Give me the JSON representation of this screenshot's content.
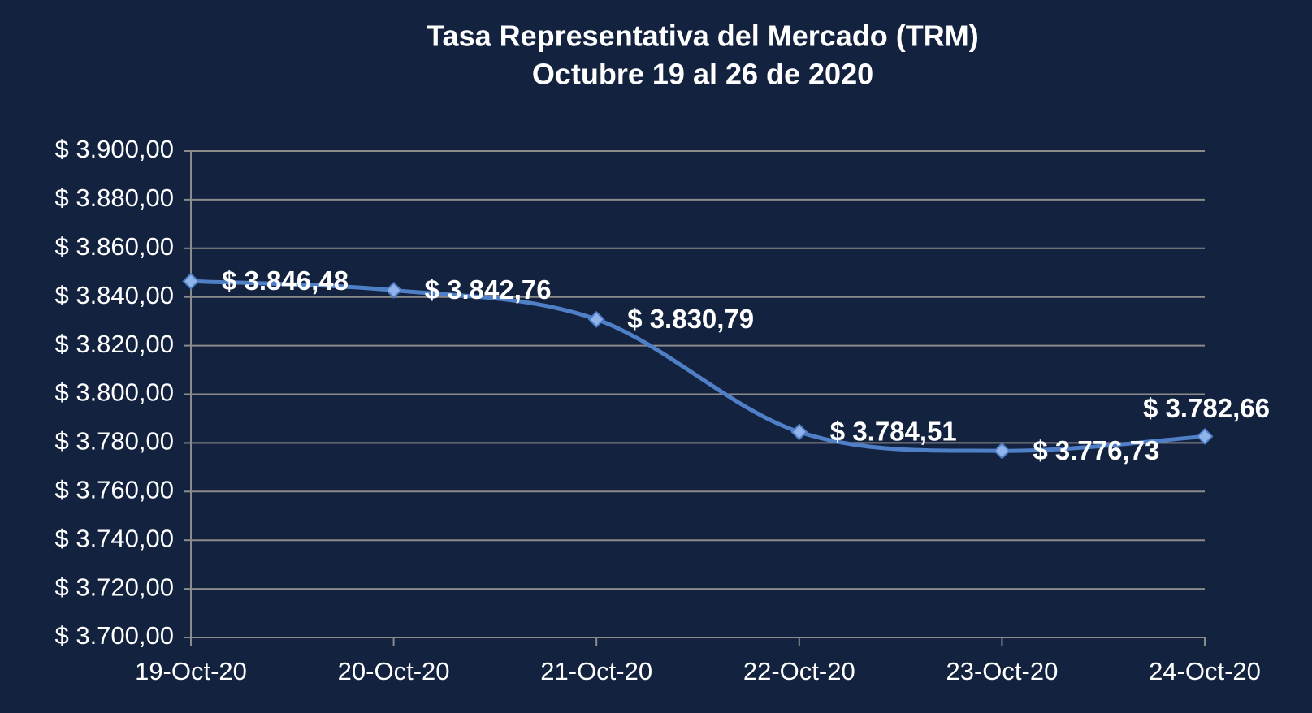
{
  "chart_data": {
    "type": "line",
    "title": "Tasa Representativa del Mercado (TRM)",
    "subtitle": "Octubre 19 al 26 de 2020",
    "categories": [
      "19-Oct-20",
      "20-Oct-20",
      "21-Oct-20",
      "22-Oct-20",
      "23-Oct-20",
      "24-Oct-20"
    ],
    "values": [
      3846.48,
      3842.76,
      3830.79,
      3784.51,
      3776.73,
      3782.66
    ],
    "value_labels": [
      "$ 3.846,48",
      "$ 3.842,76",
      "$ 3.830,79",
      "$ 3.784,51",
      "$ 3.776,73",
      "$ 3.782,66"
    ],
    "color": "#4f7fc7",
    "ylim": [
      3700,
      3900
    ],
    "yticks": [
      {
        "value": 3700,
        "label": "$ 3.700,00"
      },
      {
        "value": 3720,
        "label": "$ 3.720,00"
      },
      {
        "value": 3740,
        "label": "$ 3.740,00"
      },
      {
        "value": 3760,
        "label": "$ 3.760,00"
      },
      {
        "value": 3780,
        "label": "$ 3.780,00"
      },
      {
        "value": 3800,
        "label": "$ 3.800,00"
      },
      {
        "value": 3820,
        "label": "$ 3.820,00"
      },
      {
        "value": 3840,
        "label": "$ 3.840,00"
      },
      {
        "value": 3860,
        "label": "$ 3.860,00"
      },
      {
        "value": 3880,
        "label": "$ 3.880,00"
      },
      {
        "value": 3900,
        "label": "$ 3.900,00"
      }
    ],
    "grid": true,
    "smooth": true
  }
}
